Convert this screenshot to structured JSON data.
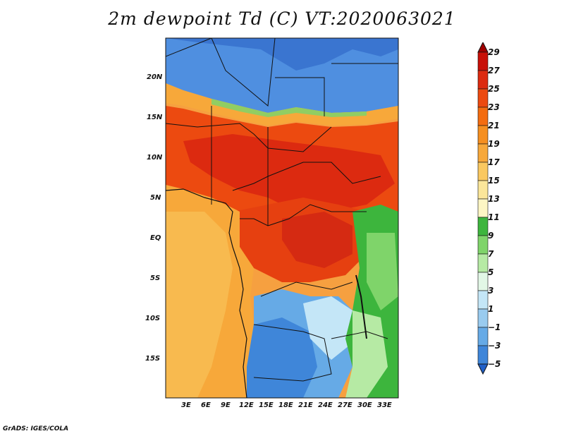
{
  "title": "2m dewpoint Td (C) VT:2020063021",
  "credit": "GrADS: IGES/COLA",
  "axes": {
    "lat_labels": [
      "20N",
      "15N",
      "10N",
      "5N",
      "EQ",
      "5S",
      "10S",
      "15S"
    ],
    "lon_labels": [
      "3E",
      "6E",
      "9E",
      "12E",
      "15E",
      "18E",
      "21E",
      "24E",
      "27E",
      "30E",
      "33E"
    ]
  },
  "colorbar": {
    "labels": [
      "29",
      "27",
      "25",
      "23",
      "21",
      "19",
      "17",
      "15",
      "13",
      "11",
      "9",
      "7",
      "5",
      "3",
      "1",
      "−1",
      "−3",
      "−5"
    ],
    "colors": [
      "#a00000",
      "#c81008",
      "#dc2a10",
      "#ec4a10",
      "#f36c10",
      "#f58f20",
      "#f7a83a",
      "#fac860",
      "#fbe69a",
      "#fdf6c4",
      "#3db53d",
      "#7fd46a",
      "#b6eaa4",
      "#e2f7e6",
      "#c4e6f7",
      "#99cbef",
      "#66aae6",
      "#3f86d9",
      "#2060c8"
    ]
  }
}
